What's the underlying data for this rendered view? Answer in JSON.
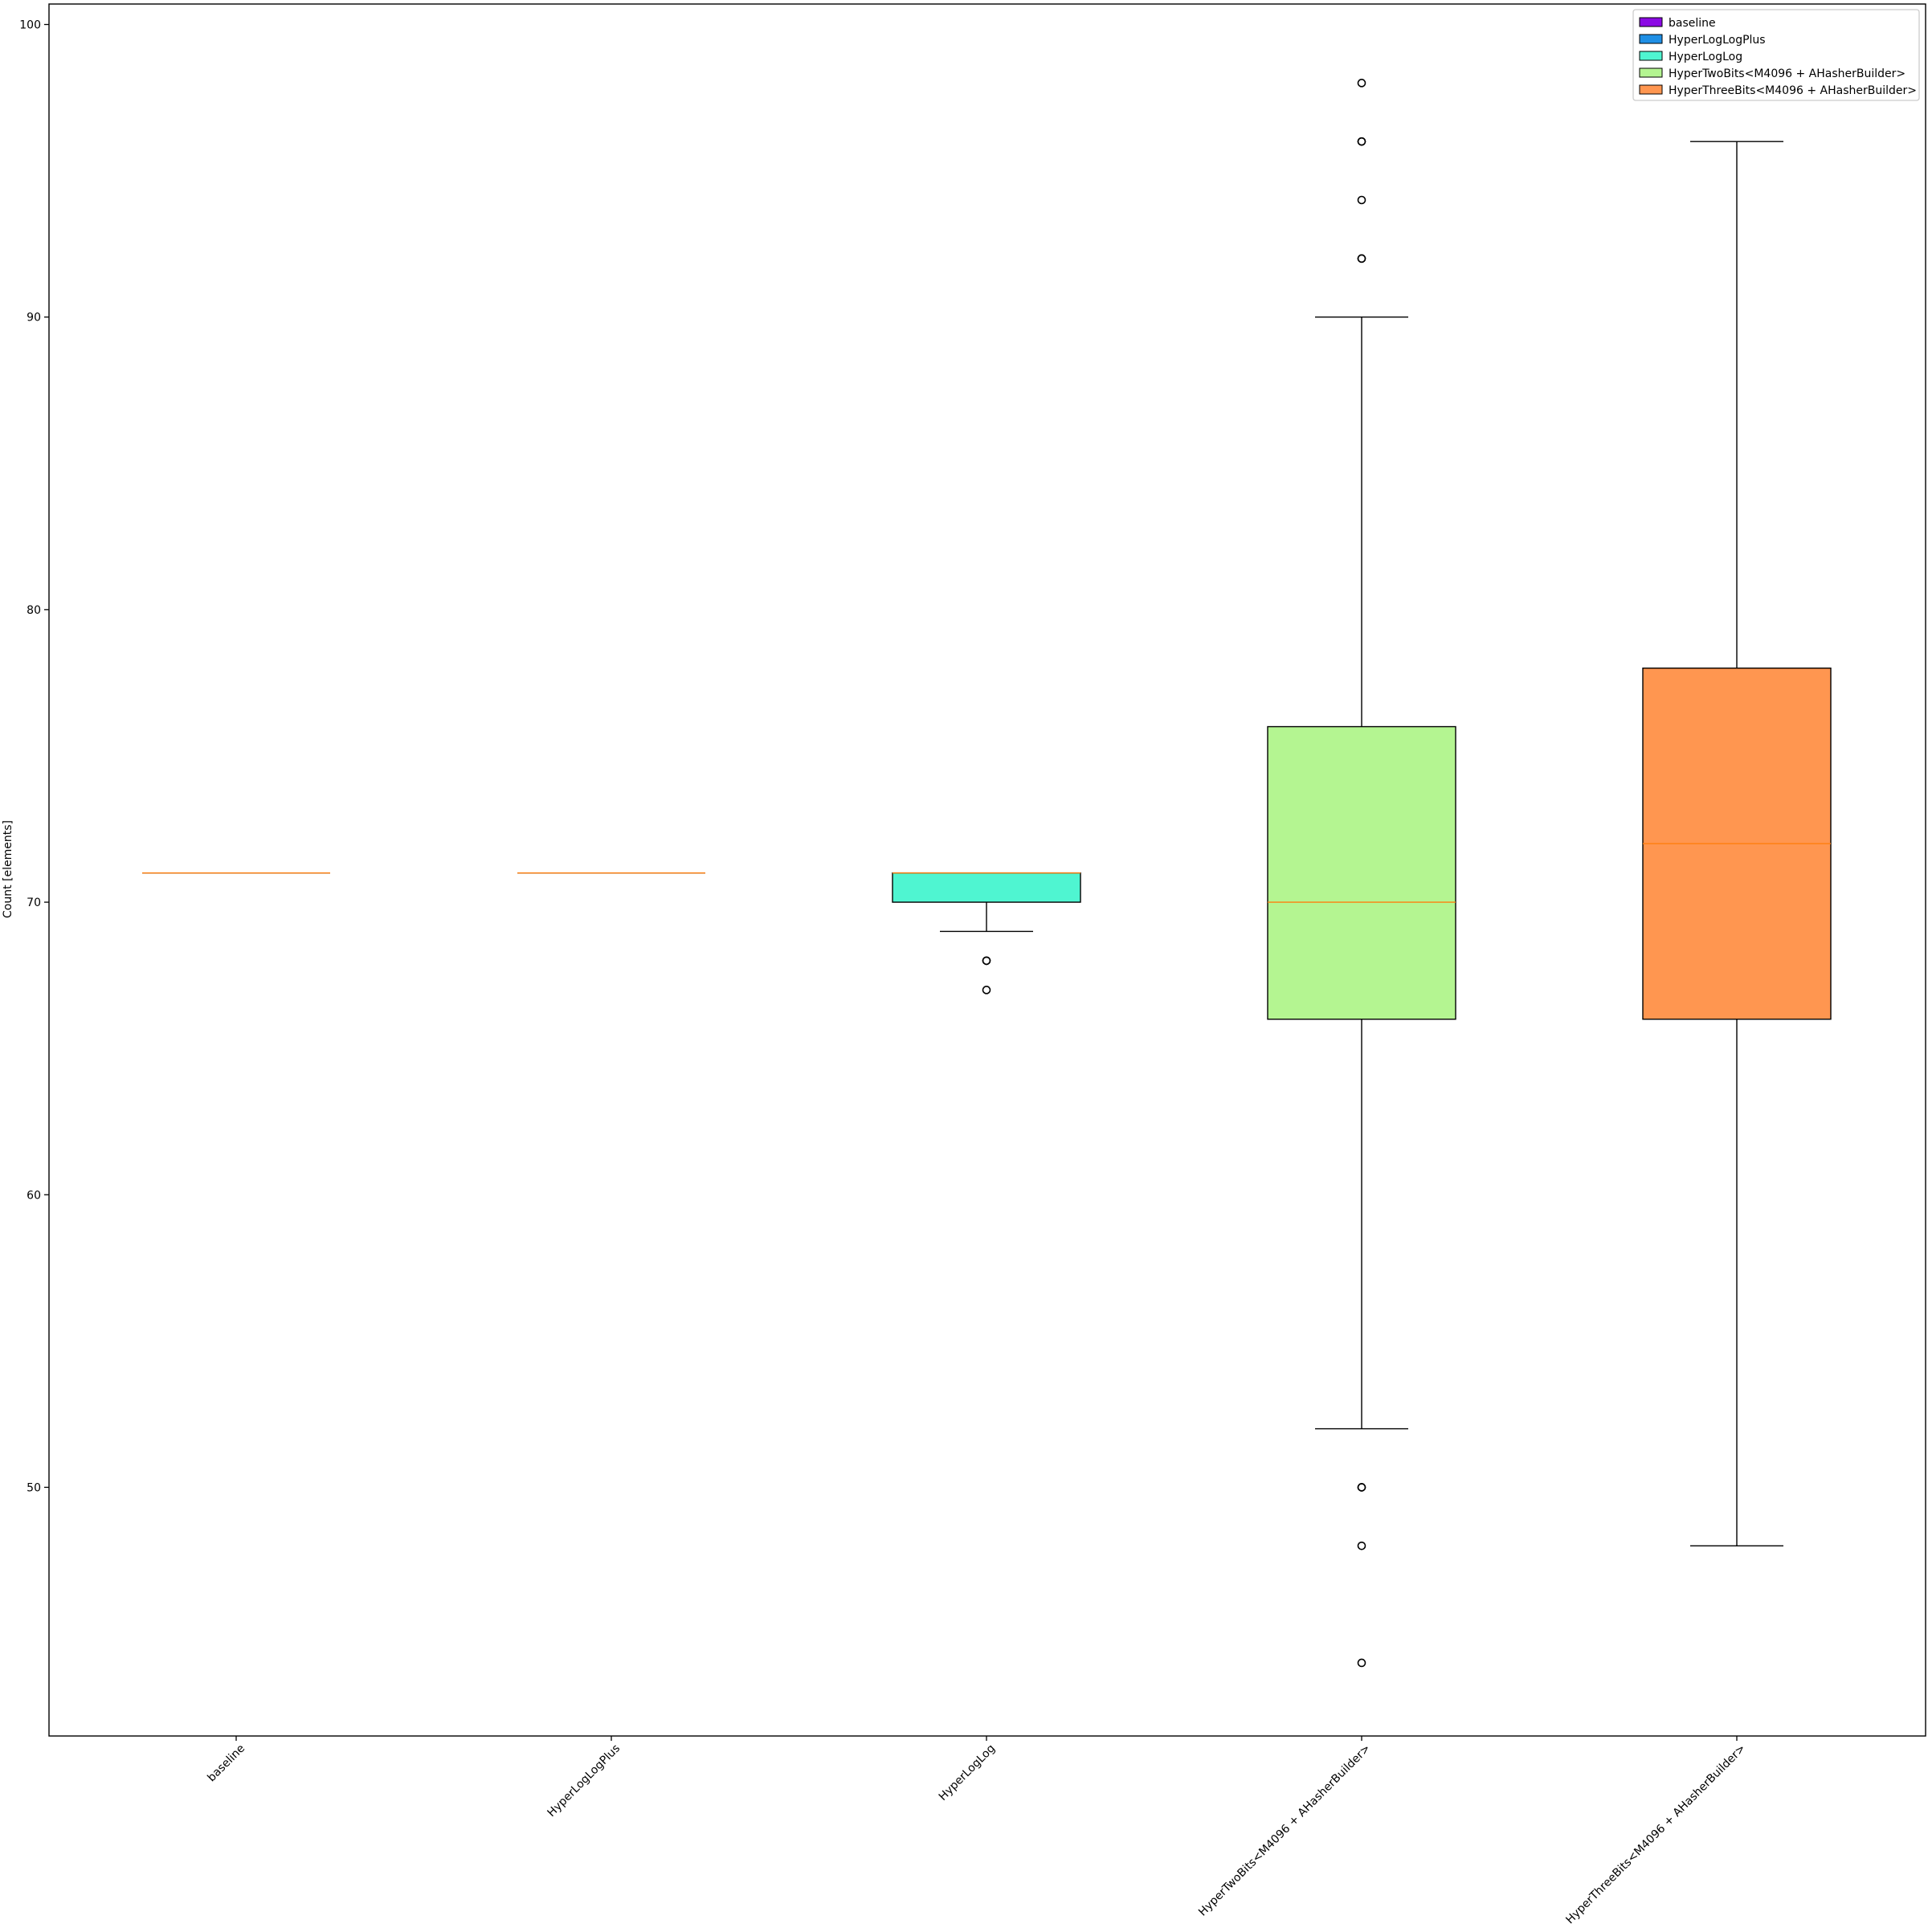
{
  "chart_data": {
    "type": "box",
    "title": "",
    "xlabel": "",
    "ylabel": "Count [elements]",
    "ylim": [
      41.5,
      100.7
    ],
    "yticks": [
      50,
      60,
      70,
      80,
      90,
      100
    ],
    "grid": false,
    "legend_position": "top-right",
    "categories": [
      "baseline",
      "HyperLogLogPlus",
      "HyperLogLog",
      "HyperTwoBits<M4096 + AHasherBuilder>",
      "HyperThreeBits<M4096 + AHasherBuilder>"
    ],
    "series": [
      {
        "name": "baseline",
        "color": "#8b0ae4",
        "whisker_low": 71,
        "q1": 71,
        "median": 71,
        "q3": 71,
        "whisker_high": 71,
        "outliers": []
      },
      {
        "name": "HyperLogLogPlus",
        "color": "#1f8fe5",
        "whisker_low": 71,
        "q1": 71,
        "median": 71,
        "q3": 71,
        "whisker_high": 71,
        "outliers": []
      },
      {
        "name": "HyperLogLog",
        "color": "#4ff5d1",
        "whisker_low": 69,
        "q1": 70,
        "median": 71,
        "q3": 71,
        "whisker_high": 71,
        "outliers": [
          68,
          68,
          67
        ]
      },
      {
        "name": "HyperTwoBits<M4096 + AHasherBuilder>",
        "color": "#b4f591",
        "whisker_low": 52,
        "q1": 66,
        "median": 70,
        "q3": 76,
        "whisker_high": 90,
        "outliers": [
          98,
          96,
          96,
          94,
          92,
          92,
          50,
          50,
          48,
          44
        ]
      },
      {
        "name": "HyperThreeBits<M4096 + AHasherBuilder>",
        "color": "#ff9650",
        "whisker_low": 48,
        "q1": 66,
        "median": 72,
        "q3": 78,
        "whisker_high": 96,
        "outliers": []
      }
    ],
    "median_color": "#ff7f0e"
  }
}
